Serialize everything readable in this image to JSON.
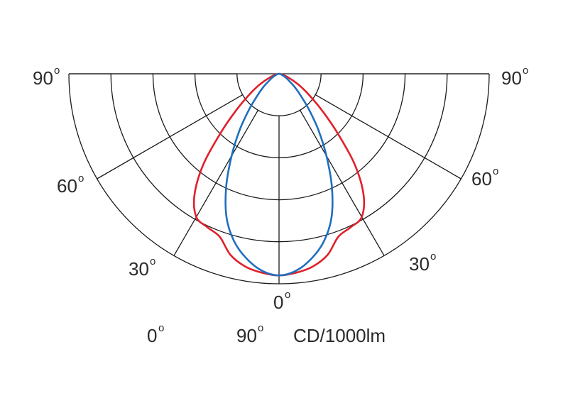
{
  "chart_data": {
    "type": "polar",
    "title": "",
    "angle_labels": {
      "left_top": "90",
      "right_top": "90",
      "left_60": "60",
      "right_60": "60",
      "left_30": "30",
      "right_30": "30",
      "bottom": "0"
    },
    "degree_symbol": "o",
    "legend": {
      "item1": "0",
      "item2": "90",
      "unit": "CD/1000lm"
    },
    "rings": 5,
    "spokes_deg": [
      0,
      30,
      60,
      90
    ],
    "series": [
      {
        "color": "#e0202a",
        "points": [
          [
            0,
            1.0
          ],
          [
            5,
            0.99
          ],
          [
            10,
            0.97
          ],
          [
            15,
            0.93
          ],
          [
            20,
            0.86
          ],
          [
            25,
            0.84
          ],
          [
            30,
            0.82
          ],
          [
            35,
            0.73
          ],
          [
            40,
            0.58
          ],
          [
            45,
            0.4
          ],
          [
            50,
            0.27
          ],
          [
            55,
            0.18
          ],
          [
            60,
            0.12
          ],
          [
            65,
            0.07
          ],
          [
            70,
            0.04
          ],
          [
            75,
            0.02
          ],
          [
            80,
            0.01
          ],
          [
            90,
            0.0
          ]
        ]
      },
      {
        "color": "#1f6fbf",
        "points": [
          [
            0,
            1.0
          ],
          [
            5,
            0.98
          ],
          [
            10,
            0.93
          ],
          [
            15,
            0.86
          ],
          [
            20,
            0.76
          ],
          [
            25,
            0.62
          ],
          [
            30,
            0.47
          ],
          [
            35,
            0.34
          ],
          [
            40,
            0.23
          ],
          [
            45,
            0.15
          ],
          [
            50,
            0.1
          ],
          [
            55,
            0.06
          ],
          [
            60,
            0.04
          ],
          [
            70,
            0.015
          ],
          [
            80,
            0.005
          ],
          [
            90,
            0.0
          ]
        ]
      }
    ],
    "grid": true
  }
}
